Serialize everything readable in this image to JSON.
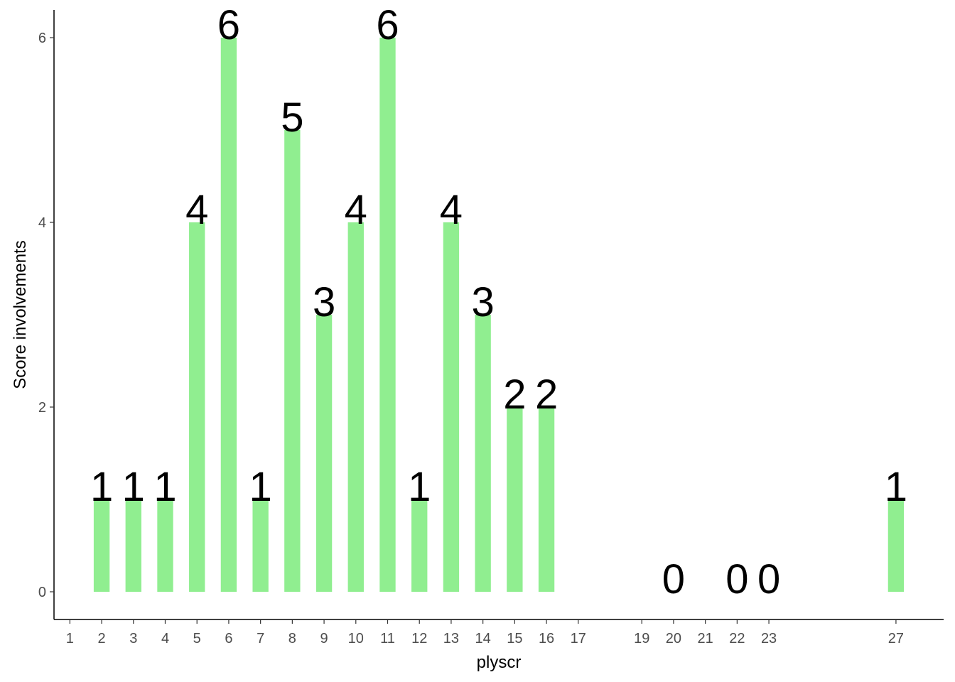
{
  "chart_data": {
    "type": "bar",
    "x": [
      2,
      3,
      4,
      5,
      6,
      7,
      8,
      9,
      10,
      11,
      12,
      13,
      14,
      15,
      16,
      20,
      22,
      23,
      27
    ],
    "values": [
      1,
      1,
      1,
      4,
      6,
      1,
      5,
      3,
      4,
      6,
      1,
      4,
      3,
      2,
      2,
      0,
      0,
      0,
      1
    ],
    "color": "#90ee90",
    "xlabel": "plyscr",
    "ylabel": "Score involvements",
    "xlim": [
      0.5,
      28.5
    ],
    "ylim": [
      -0.3,
      6.3
    ],
    "xticks": [
      1,
      2,
      3,
      4,
      5,
      6,
      7,
      8,
      9,
      10,
      11,
      12,
      13,
      14,
      15,
      16,
      17,
      19,
      20,
      21,
      22,
      23,
      27
    ],
    "yticks": [
      0,
      2,
      4,
      6
    ],
    "grid": false
  }
}
